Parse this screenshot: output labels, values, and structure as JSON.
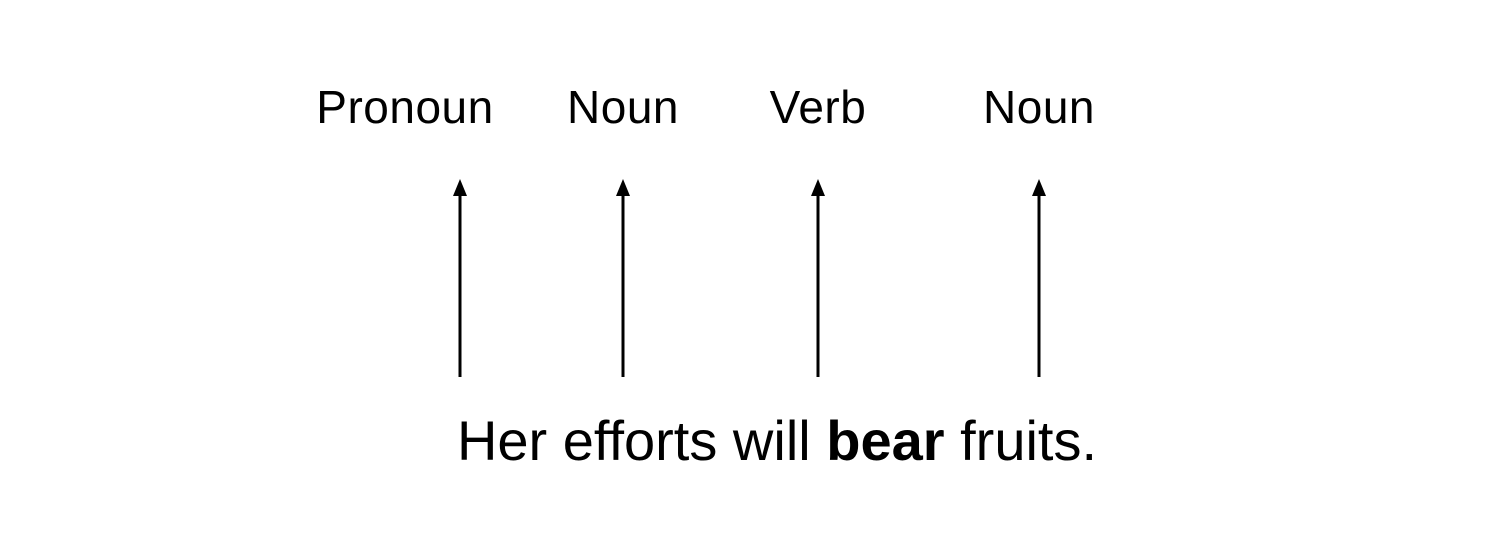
{
  "tags": [
    {
      "label": "Pronoun"
    },
    {
      "label": "Noun"
    },
    {
      "label": "Verb"
    },
    {
      "label": "Noun"
    }
  ],
  "sentence": {
    "words": [
      "Her",
      "efforts",
      "will",
      "bear",
      "fruits."
    ],
    "emphasized_word": "bear"
  },
  "colors": {
    "text": "#000000",
    "arrow": "#000000",
    "background": "#ffffff"
  }
}
